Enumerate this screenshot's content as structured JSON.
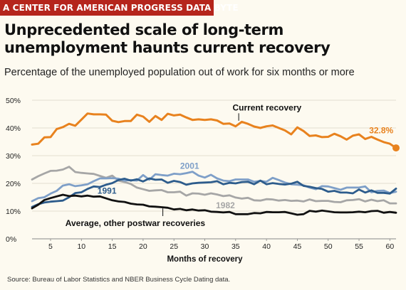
{
  "banner": "A CENTER FOR AMERICAN PROGRESS DATA BYTE",
  "title": "Unprecedented scale of long-term unemployment haunts current recovery",
  "subtitle": "Percentage of the unemployed population out of work for six months or more",
  "source": "Source: Bureau of Labor Statistics and NBER Business Cycle Dating data.",
  "colors": {
    "background": "#fdfaf0",
    "banner": "#b5251c",
    "current": "#e8821e",
    "s2001": "#7e9fc8",
    "s1991": "#2d5c8c",
    "s1982": "#a6a6a6",
    "average": "#111111",
    "grid": "#d9d3c4"
  },
  "chart_data": {
    "type": "line",
    "title": "Unprecedented scale of long-term unemployment haunts current recovery",
    "subtitle": "Percentage of the unemployed population out of work for six months or more",
    "xlabel": "Months of recovery",
    "ylabel": "",
    "xlim": [
      2,
      61
    ],
    "ylim": [
      0,
      50
    ],
    "x_ticks": [
      5,
      10,
      15,
      20,
      25,
      30,
      35,
      40,
      45,
      50,
      55,
      60
    ],
    "y_ticks": [
      0,
      10,
      20,
      30,
      40,
      50
    ],
    "y_tick_labels": [
      "0%",
      "10%",
      "20%",
      "30%",
      "40%",
      "50%"
    ],
    "grid": true,
    "x": [
      2,
      3,
      4,
      5,
      6,
      7,
      8,
      9,
      10,
      11,
      12,
      13,
      14,
      15,
      16,
      17,
      18,
      19,
      20,
      21,
      22,
      23,
      24,
      25,
      26,
      27,
      28,
      29,
      30,
      31,
      32,
      33,
      34,
      35,
      36,
      37,
      38,
      39,
      40,
      41,
      42,
      43,
      44,
      45,
      46,
      47,
      48,
      49,
      50,
      51,
      52,
      53,
      54,
      55,
      56,
      57,
      58,
      59,
      60,
      61
    ],
    "series": [
      {
        "name": "Current recovery",
        "color": "#e8821e",
        "end_label": "32.8%",
        "values": [
          34.0,
          34.3,
          36.6,
          36.7,
          39.6,
          40.3,
          41.5,
          40.8,
          43.0,
          45.2,
          44.9,
          44.9,
          44.8,
          42.6,
          42.1,
          42.5,
          42.5,
          44.8,
          44.1,
          42.2,
          44.3,
          42.9,
          45.1,
          44.5,
          44.8,
          43.8,
          42.9,
          43.1,
          42.9,
          43.1,
          42.7,
          41.5,
          41.6,
          40.6,
          42.2,
          41.5,
          40.5,
          40.0,
          40.6,
          40.9,
          40.0,
          39.1,
          37.7,
          40.2,
          38.9,
          37.1,
          37.3,
          36.7,
          36.8,
          37.9,
          37.0,
          35.8,
          37.2,
          37.7,
          36.0,
          36.8,
          35.8,
          34.9,
          34.3,
          32.8
        ]
      },
      {
        "name": "2001",
        "color": "#7e9fc8",
        "values": [
          13.6,
          14.7,
          15.0,
          16.3,
          17.3,
          19.2,
          19.7,
          19.0,
          19.3,
          19.7,
          20.8,
          21.8,
          21.8,
          21.9,
          21.7,
          21.0,
          21.2,
          21.0,
          23.0,
          21.3,
          23.3,
          23.0,
          22.8,
          23.5,
          23.3,
          23.7,
          24.2,
          22.8,
          22.1,
          23.1,
          21.8,
          21.0,
          20.8,
          21.4,
          21.4,
          21.4,
          20.6,
          20.9,
          20.6,
          22.0,
          21.2,
          20.3,
          19.7,
          19.5,
          19.3,
          18.5,
          17.9,
          19.0,
          18.9,
          18.3,
          17.7,
          18.5,
          18.5,
          18.5,
          18.9,
          16.8,
          17.3,
          17.4,
          16.5,
          17.0
        ]
      },
      {
        "name": "1991",
        "color": "#2d5c8c",
        "values": [
          11.5,
          12.5,
          13.1,
          13.4,
          13.6,
          13.8,
          15.0,
          16.5,
          16.8,
          18.0,
          18.9,
          18.7,
          19.5,
          20.1,
          21.2,
          21.7,
          21.0,
          21.5,
          20.7,
          21.8,
          21.3,
          21.4,
          20.2,
          20.9,
          20.5,
          19.5,
          20.0,
          20.2,
          20.3,
          20.4,
          20.8,
          19.7,
          20.2,
          20.0,
          20.5,
          20.6,
          19.7,
          21.0,
          19.7,
          20.1,
          19.8,
          19.6,
          19.9,
          20.6,
          19.1,
          18.8,
          18.3,
          18.0,
          17.0,
          17.3,
          16.7,
          16.7,
          16.4,
          17.8,
          16.7,
          17.5,
          16.6,
          16.6,
          16.3,
          18.1
        ]
      },
      {
        "name": "1982",
        "color": "#a6a6a6",
        "values": [
          21.4,
          22.6,
          23.6,
          24.5,
          24.6,
          25.0,
          26.0,
          24.1,
          23.8,
          23.6,
          23.4,
          22.7,
          22.0,
          22.8,
          21.0,
          20.5,
          19.8,
          18.5,
          17.9,
          17.3,
          17.5,
          17.6,
          16.8,
          16.8,
          17.0,
          15.6,
          16.4,
          16.3,
          15.9,
          16.4,
          16.0,
          15.4,
          15.7,
          14.9,
          14.5,
          14.8,
          13.9,
          13.8,
          14.3,
          14.2,
          13.8,
          14.0,
          13.7,
          13.8,
          13.5,
          14.2,
          13.6,
          13.7,
          13.7,
          13.3,
          13.2,
          13.9,
          14.0,
          14.3,
          13.5,
          14.1,
          13.6,
          13.9,
          12.8,
          12.8
        ]
      },
      {
        "name": "Average, other postwar recoveries",
        "color": "#111111",
        "values": [
          11.0,
          12.3,
          14.0,
          14.7,
          15.3,
          15.9,
          15.4,
          15.6,
          15.3,
          15.6,
          15.2,
          15.3,
          14.6,
          13.9,
          13.5,
          13.3,
          12.7,
          12.4,
          12.3,
          11.7,
          11.6,
          11.4,
          11.2,
          10.6,
          10.8,
          10.3,
          10.6,
          10.2,
          10.3,
          9.8,
          9.7,
          9.5,
          9.7,
          8.9,
          8.9,
          8.9,
          9.3,
          9.2,
          9.7,
          9.6,
          9.6,
          9.7,
          9.2,
          8.7,
          8.9,
          10.1,
          9.8,
          10.2,
          9.9,
          9.6,
          9.5,
          9.5,
          9.6,
          9.8,
          9.6,
          10.0,
          10.1,
          9.4,
          9.7,
          9.4
        ]
      }
    ],
    "annotations": [
      {
        "text": "Current recovery",
        "series": "Current recovery"
      },
      {
        "text": "2001",
        "series": "2001"
      },
      {
        "text": "1991",
        "series": "1991"
      },
      {
        "text": "1982",
        "series": "1982"
      },
      {
        "text": "Average, other postwar recoveries",
        "series": "Average, other postwar recoveries"
      },
      {
        "text": "32.8%",
        "series": "Current recovery"
      }
    ]
  }
}
